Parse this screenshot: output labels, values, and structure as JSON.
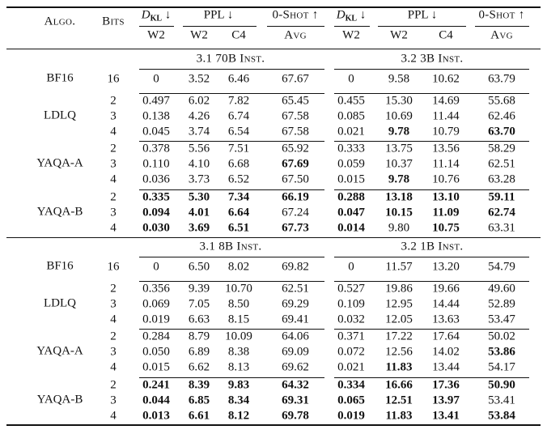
{
  "header": {
    "algo": "Algo.",
    "bits": "Bits",
    "dkl_prefix": "D",
    "dkl_sub": "KL",
    "arrow_down": "↓",
    "ppl": "PPL ↓",
    "zeroshot": "0-Shot ↑",
    "w2": "W2",
    "c4": "C4",
    "avg": "Avg"
  },
  "blocks": [
    {
      "left_title": "3.1 70B Inst.",
      "right_title": "3.2 3B Inst.",
      "groups": [
        {
          "algo": "BF16",
          "rows": [
            {
              "bits": "16",
              "c": [
                "0",
                "3.52",
                "6.46",
                "67.67",
                "0",
                "9.58",
                "10.62",
                "63.79"
              ],
              "bold": [
                false,
                false,
                false,
                false,
                false,
                false,
                false,
                false
              ]
            }
          ]
        },
        {
          "algo": "LDLQ",
          "rows": [
            {
              "bits": "2",
              "c": [
                "0.497",
                "6.02",
                "7.82",
                "65.45",
                "0.455",
                "15.30",
                "14.69",
                "55.68"
              ],
              "bold": [
                false,
                false,
                false,
                false,
                false,
                false,
                false,
                false
              ]
            },
            {
              "bits": "3",
              "c": [
                "0.138",
                "4.26",
                "6.74",
                "67.58",
                "0.085",
                "10.69",
                "11.44",
                "62.46"
              ],
              "bold": [
                false,
                false,
                false,
                false,
                false,
                false,
                false,
                false
              ]
            },
            {
              "bits": "4",
              "c": [
                "0.045",
                "3.74",
                "6.54",
                "67.58",
                "0.021",
                "9.78",
                "10.79",
                "63.70"
              ],
              "bold": [
                false,
                false,
                false,
                false,
                false,
                true,
                false,
                true
              ]
            }
          ]
        },
        {
          "algo": "YAQA-A",
          "rows": [
            {
              "bits": "2",
              "c": [
                "0.378",
                "5.56",
                "7.51",
                "65.92",
                "0.333",
                "13.75",
                "13.56",
                "58.29"
              ],
              "bold": [
                false,
                false,
                false,
                false,
                false,
                false,
                false,
                false
              ]
            },
            {
              "bits": "3",
              "c": [
                "0.110",
                "4.10",
                "6.68",
                "67.69",
                "0.059",
                "10.37",
                "11.14",
                "62.51"
              ],
              "bold": [
                false,
                false,
                false,
                true,
                false,
                false,
                false,
                false
              ]
            },
            {
              "bits": "4",
              "c": [
                "0.036",
                "3.73",
                "6.52",
                "67.50",
                "0.015",
                "9.78",
                "10.76",
                "63.28"
              ],
              "bold": [
                false,
                false,
                false,
                false,
                false,
                true,
                false,
                false
              ]
            }
          ]
        },
        {
          "algo": "YAQA-B",
          "rows": [
            {
              "bits": "2",
              "c": [
                "0.335",
                "5.30",
                "7.34",
                "66.19",
                "0.288",
                "13.18",
                "13.10",
                "59.11"
              ],
              "bold": [
                true,
                true,
                true,
                true,
                true,
                true,
                true,
                true
              ]
            },
            {
              "bits": "3",
              "c": [
                "0.094",
                "4.01",
                "6.64",
                "67.24",
                "0.047",
                "10.15",
                "11.09",
                "62.74"
              ],
              "bold": [
                true,
                true,
                true,
                false,
                true,
                true,
                true,
                true
              ]
            },
            {
              "bits": "4",
              "c": [
                "0.030",
                "3.69",
                "6.51",
                "67.73",
                "0.014",
                "9.80",
                "10.75",
                "63.31"
              ],
              "bold": [
                true,
                true,
                true,
                true,
                true,
                false,
                true,
                false
              ]
            }
          ]
        }
      ]
    },
    {
      "left_title": "3.1 8B Inst.",
      "right_title": "3.2 1B Inst.",
      "groups": [
        {
          "algo": "BF16",
          "rows": [
            {
              "bits": "16",
              "c": [
                "0",
                "6.50",
                "8.02",
                "69.82",
                "0",
                "11.57",
                "13.20",
                "54.79"
              ],
              "bold": [
                false,
                false,
                false,
                false,
                false,
                false,
                false,
                false
              ]
            }
          ]
        },
        {
          "algo": "LDLQ",
          "rows": [
            {
              "bits": "2",
              "c": [
                "0.356",
                "9.39",
                "10.70",
                "62.51",
                "0.527",
                "19.86",
                "19.66",
                "49.60"
              ],
              "bold": [
                false,
                false,
                false,
                false,
                false,
                false,
                false,
                false
              ]
            },
            {
              "bits": "3",
              "c": [
                "0.069",
                "7.05",
                "8.50",
                "69.29",
                "0.109",
                "12.95",
                "14.44",
                "52.89"
              ],
              "bold": [
                false,
                false,
                false,
                false,
                false,
                false,
                false,
                false
              ]
            },
            {
              "bits": "4",
              "c": [
                "0.019",
                "6.63",
                "8.15",
                "69.41",
                "0.032",
                "12.05",
                "13.63",
                "53.47"
              ],
              "bold": [
                false,
                false,
                false,
                false,
                false,
                false,
                false,
                false
              ]
            }
          ]
        },
        {
          "algo": "YAQA-A",
          "rows": [
            {
              "bits": "2",
              "c": [
                "0.284",
                "8.79",
                "10.09",
                "64.06",
                "0.371",
                "17.22",
                "17.64",
                "50.02"
              ],
              "bold": [
                false,
                false,
                false,
                false,
                false,
                false,
                false,
                false
              ]
            },
            {
              "bits": "3",
              "c": [
                "0.050",
                "6.89",
                "8.38",
                "69.09",
                "0.072",
                "12.56",
                "14.02",
                "53.86"
              ],
              "bold": [
                false,
                false,
                false,
                false,
                false,
                false,
                false,
                true
              ]
            },
            {
              "bits": "4",
              "c": [
                "0.015",
                "6.62",
                "8.13",
                "69.62",
                "0.021",
                "11.83",
                "13.44",
                "54.17"
              ],
              "bold": [
                false,
                false,
                false,
                false,
                false,
                true,
                false,
                false
              ]
            }
          ]
        },
        {
          "algo": "YAQA-B",
          "rows": [
            {
              "bits": "2",
              "c": [
                "0.241",
                "8.39",
                "9.83",
                "64.32",
                "0.334",
                "16.66",
                "17.36",
                "50.90"
              ],
              "bold": [
                true,
                true,
                true,
                true,
                true,
                true,
                true,
                true
              ]
            },
            {
              "bits": "3",
              "c": [
                "0.044",
                "6.85",
                "8.34",
                "69.31",
                "0.065",
                "12.51",
                "13.97",
                "53.41"
              ],
              "bold": [
                true,
                true,
                true,
                true,
                true,
                true,
                true,
                false
              ]
            },
            {
              "bits": "4",
              "c": [
                "0.013",
                "6.61",
                "8.12",
                "69.78",
                "0.019",
                "11.83",
                "13.41",
                "53.84"
              ],
              "bold": [
                true,
                true,
                true,
                true,
                true,
                true,
                true,
                true
              ]
            }
          ]
        }
      ]
    }
  ]
}
